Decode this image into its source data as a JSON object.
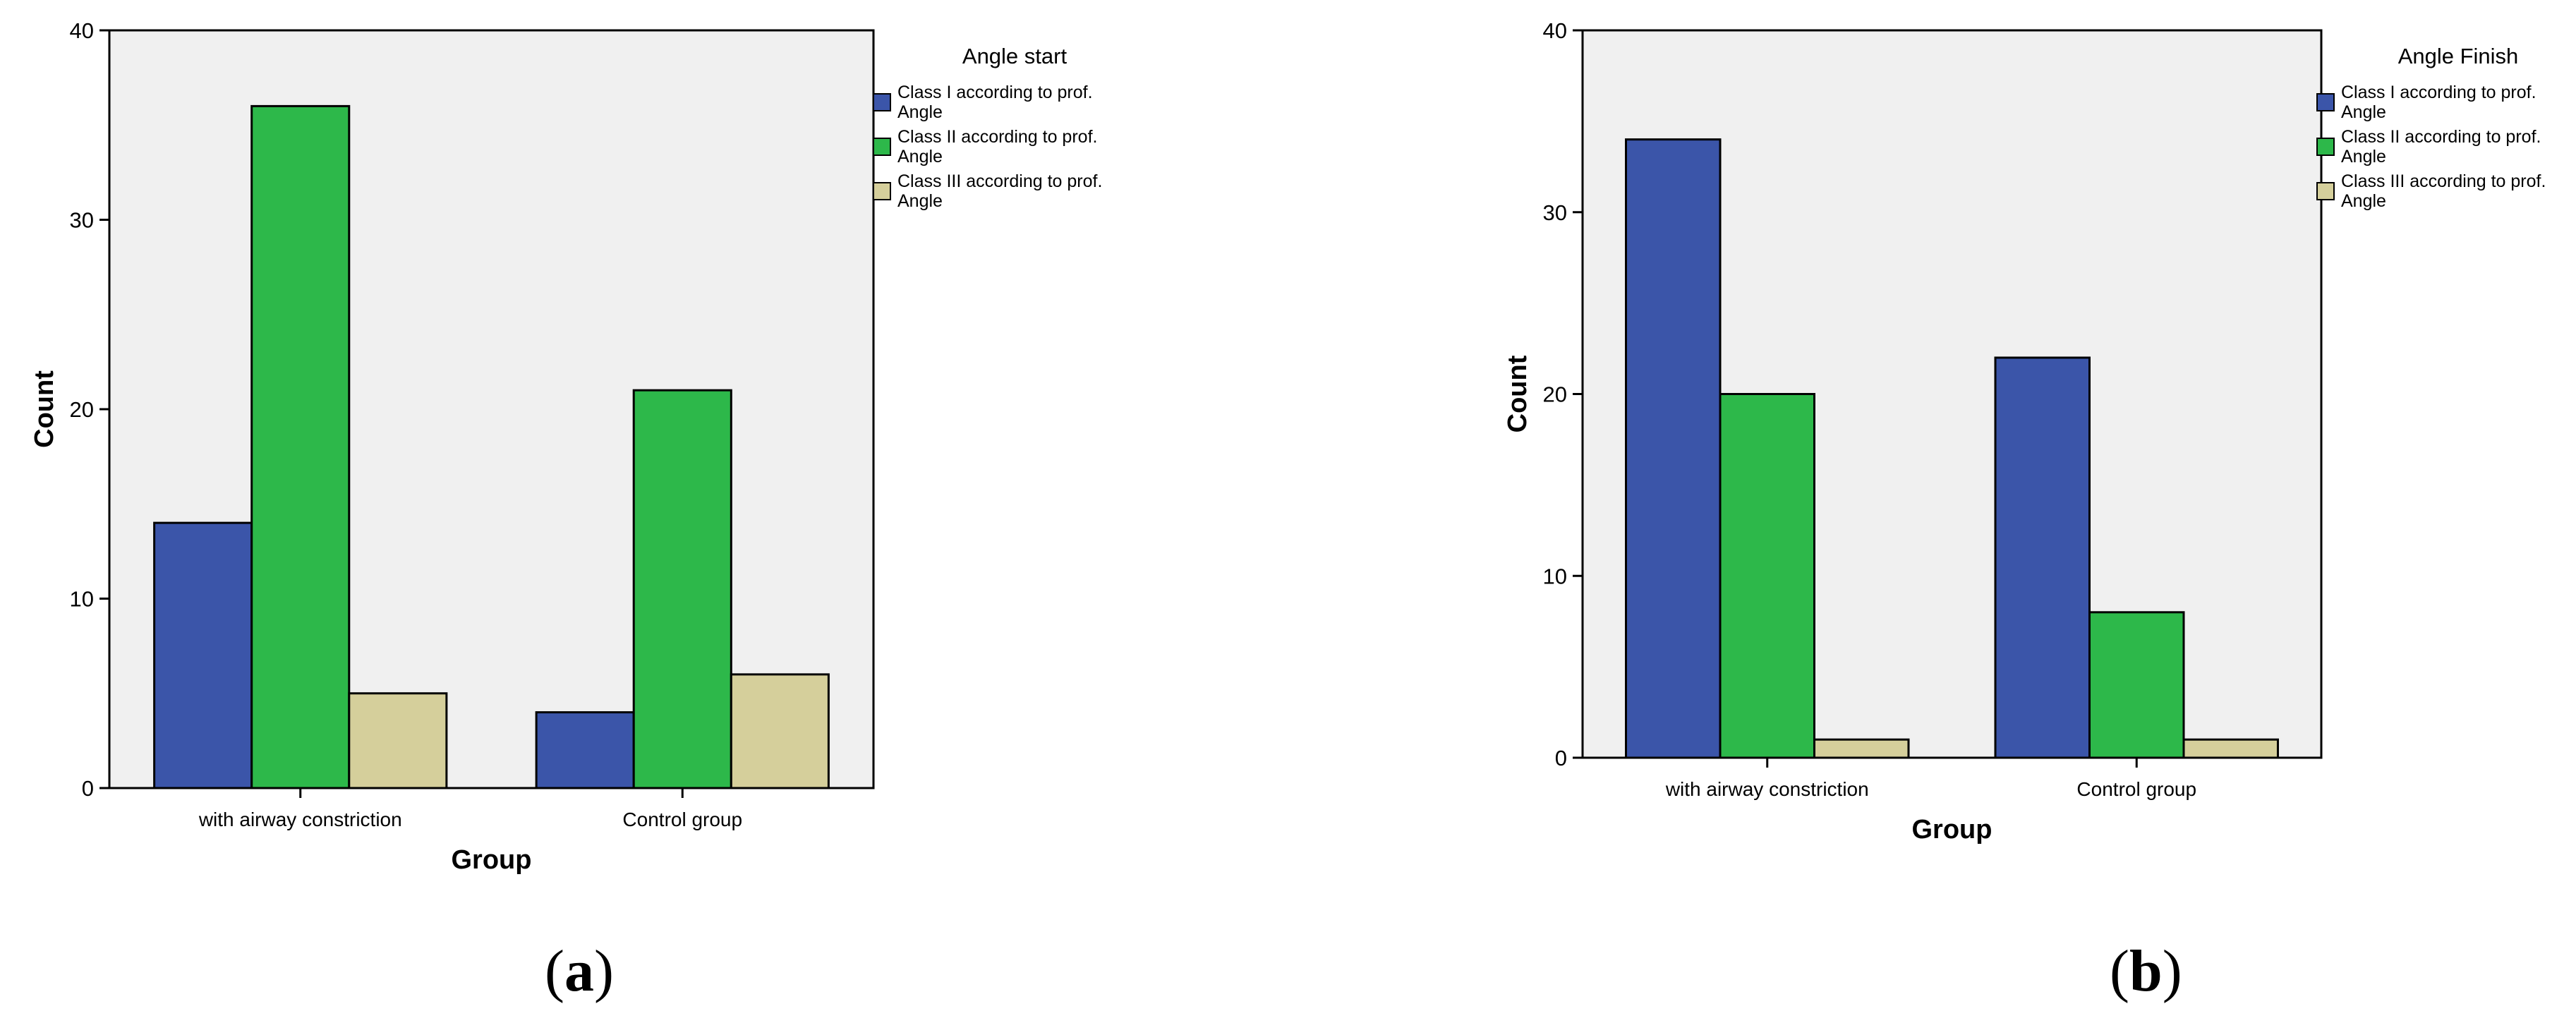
{
  "chart_data": [
    {
      "type": "bar",
      "title": "",
      "xlabel": "Group",
      "ylabel": "Count",
      "ylim": [
        0,
        40
      ],
      "yticks": [
        "0",
        "10",
        "20",
        "30",
        "40"
      ],
      "categories": [
        "with airway constriction",
        "Control group"
      ],
      "legend_title": "Angle start",
      "legend_position": "right",
      "grid": false,
      "series": [
        {
          "name": "Class I according to prof. Angle",
          "values": [
            14,
            4
          ],
          "color": "#3b55a9"
        },
        {
          "name": "Class II according to prof. Angle",
          "values": [
            36,
            21
          ],
          "color": "#2db84a"
        },
        {
          "name": "Class III according to prof. Angle",
          "values": [
            5,
            6
          ],
          "color": "#d5cf9b"
        }
      ],
      "panel_label": {
        "open": "(",
        "letter": "a",
        "close": ")"
      }
    },
    {
      "type": "bar",
      "title": "",
      "xlabel": "Group",
      "ylabel": "Count",
      "ylim": [
        0,
        40
      ],
      "yticks": [
        "0",
        "10",
        "20",
        "30",
        "40"
      ],
      "categories": [
        "with airway constriction",
        "Control group"
      ],
      "legend_title": "Angle Finish",
      "legend_position": "right",
      "grid": false,
      "series": [
        {
          "name": "Class I according to prof. Angle",
          "values": [
            34,
            22
          ],
          "color": "#3b55a9"
        },
        {
          "name": "Class II according to prof. Angle",
          "values": [
            20,
            8
          ],
          "color": "#2db84a"
        },
        {
          "name": "Class III according to prof. Angle",
          "values": [
            1,
            1
          ],
          "color": "#d5cf9b"
        }
      ],
      "panel_label": {
        "open": "(",
        "letter": "b",
        "close": ")"
      }
    }
  ],
  "colors": {
    "plot_background": "#f0f0f0",
    "axis": "#000000",
    "bar_outline": "#000000"
  }
}
